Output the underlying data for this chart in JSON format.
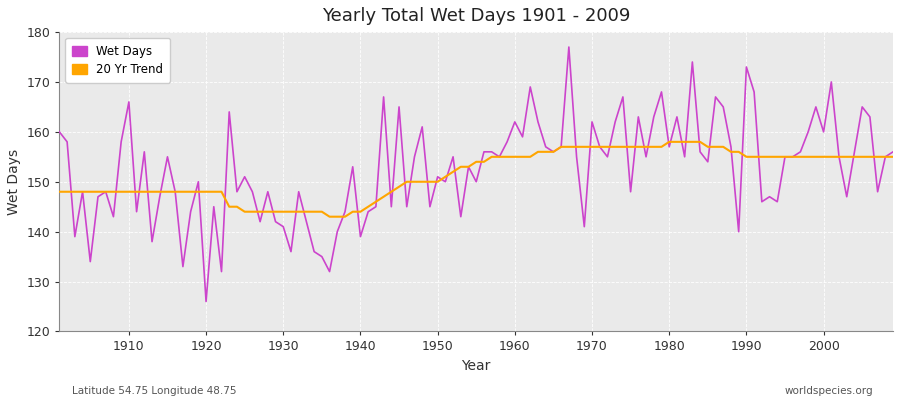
{
  "title": "Yearly Total Wet Days 1901 - 2009",
  "xlabel": "Year",
  "ylabel": "Wet Days",
  "lat_lon_label": "Latitude 54.75 Longitude 48.75",
  "watermark": "worldspecies.org",
  "ylim": [
    120,
    180
  ],
  "xlim": [
    1901,
    2009
  ],
  "line_color": "#CC44CC",
  "trend_color": "#FFA500",
  "bg_color": "#EAEAEA",
  "fig_color": "#FFFFFF",
  "grid_color": "#FFFFFF",
  "years": [
    1901,
    1902,
    1903,
    1904,
    1905,
    1906,
    1907,
    1908,
    1909,
    1910,
    1911,
    1912,
    1913,
    1914,
    1915,
    1916,
    1917,
    1918,
    1919,
    1920,
    1921,
    1922,
    1923,
    1924,
    1925,
    1926,
    1927,
    1928,
    1929,
    1930,
    1931,
    1932,
    1933,
    1934,
    1935,
    1936,
    1937,
    1938,
    1939,
    1940,
    1941,
    1942,
    1943,
    1944,
    1945,
    1946,
    1947,
    1948,
    1949,
    1950,
    1951,
    1952,
    1953,
    1954,
    1955,
    1956,
    1957,
    1958,
    1959,
    1960,
    1961,
    1962,
    1963,
    1964,
    1965,
    1966,
    1967,
    1968,
    1969,
    1970,
    1971,
    1972,
    1973,
    1974,
    1975,
    1976,
    1977,
    1978,
    1979,
    1980,
    1981,
    1982,
    1983,
    1984,
    1985,
    1986,
    1987,
    1988,
    1989,
    1990,
    1991,
    1992,
    1993,
    1994,
    1995,
    1996,
    1997,
    1998,
    1999,
    2000,
    2001,
    2002,
    2003,
    2004,
    2005,
    2006,
    2007,
    2008,
    2009
  ],
  "wet_days": [
    160,
    158,
    139,
    148,
    134,
    147,
    148,
    143,
    158,
    166,
    144,
    156,
    138,
    147,
    155,
    148,
    133,
    144,
    150,
    126,
    145,
    132,
    164,
    148,
    151,
    148,
    142,
    148,
    142,
    141,
    136,
    148,
    142,
    136,
    135,
    132,
    140,
    144,
    153,
    139,
    144,
    145,
    167,
    145,
    165,
    145,
    155,
    161,
    145,
    151,
    150,
    155,
    143,
    153,
    150,
    156,
    156,
    155,
    158,
    162,
    159,
    169,
    162,
    157,
    156,
    157,
    177,
    155,
    141,
    162,
    157,
    155,
    162,
    167,
    148,
    163,
    155,
    163,
    168,
    157,
    163,
    155,
    174,
    156,
    154,
    167,
    165,
    157,
    140,
    173,
    168,
    146,
    147,
    146,
    155,
    155,
    156,
    160,
    165,
    160,
    170,
    155,
    147,
    156,
    165,
    163,
    148,
    155,
    156
  ],
  "trend": [
    148,
    148,
    148,
    148,
    148,
    148,
    148,
    148,
    148,
    148,
    148,
    148,
    148,
    148,
    148,
    148,
    148,
    148,
    148,
    148,
    148,
    148,
    145,
    145,
    144,
    144,
    144,
    144,
    144,
    144,
    144,
    144,
    144,
    144,
    144,
    143,
    143,
    143,
    144,
    144,
    145,
    146,
    147,
    148,
    149,
    150,
    150,
    150,
    150,
    150,
    151,
    152,
    153,
    153,
    154,
    154,
    155,
    155,
    155,
    155,
    155,
    155,
    156,
    156,
    156,
    157,
    157,
    157,
    157,
    157,
    157,
    157,
    157,
    157,
    157,
    157,
    157,
    157,
    157,
    158,
    158,
    158,
    158,
    158,
    157,
    157,
    157,
    156,
    156,
    155,
    155,
    155,
    155,
    155,
    155,
    155,
    155,
    155,
    155,
    155,
    155,
    155,
    155,
    155,
    155,
    155,
    155,
    155,
    155
  ]
}
